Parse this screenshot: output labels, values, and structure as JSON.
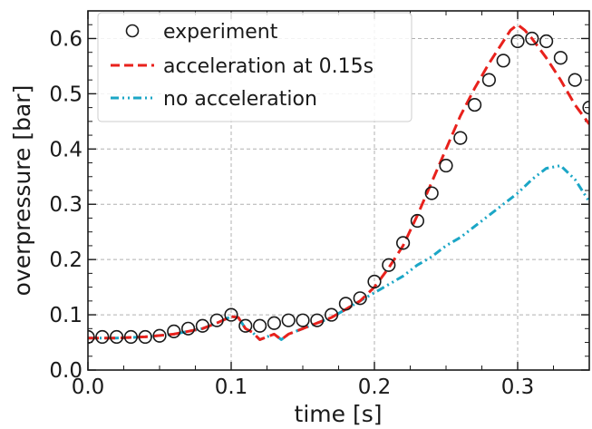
{
  "chart_data": {
    "type": "line",
    "title": "",
    "xlabel": "time [s]",
    "ylabel": "overpressure [bar]",
    "xlim": [
      0.0,
      0.35
    ],
    "ylim": [
      0.0,
      0.65
    ],
    "xticks": [
      0.0,
      0.1,
      0.2,
      0.3
    ],
    "xtick_labels": [
      "0.0",
      "0.1",
      "0.2",
      "0.3"
    ],
    "yticks": [
      0.0,
      0.1,
      0.2,
      0.3,
      0.4,
      0.5,
      0.6
    ],
    "ytick_labels": [
      "0.0",
      "0.1",
      "0.2",
      "0.3",
      "0.4",
      "0.5",
      "0.6"
    ],
    "grid": true,
    "legend_position": "top-left",
    "series": [
      {
        "name": "experiment",
        "style": "open-circle-markers",
        "color": "#1a1a1a",
        "x": [
          0.0,
          0.01,
          0.02,
          0.03,
          0.04,
          0.05,
          0.06,
          0.07,
          0.08,
          0.09,
          0.1,
          0.11,
          0.12,
          0.13,
          0.14,
          0.15,
          0.16,
          0.17,
          0.18,
          0.19,
          0.2,
          0.21,
          0.22,
          0.23,
          0.24,
          0.25,
          0.26,
          0.27,
          0.28,
          0.29,
          0.3,
          0.31,
          0.32,
          0.33,
          0.34,
          0.35
        ],
        "y": [
          0.06,
          0.06,
          0.06,
          0.06,
          0.06,
          0.062,
          0.07,
          0.075,
          0.08,
          0.09,
          0.1,
          0.08,
          0.08,
          0.085,
          0.09,
          0.09,
          0.09,
          0.1,
          0.12,
          0.13,
          0.16,
          0.19,
          0.23,
          0.27,
          0.32,
          0.37,
          0.42,
          0.48,
          0.525,
          0.56,
          0.595,
          0.6,
          0.595,
          0.565,
          0.525,
          0.475
        ]
      },
      {
        "name": "acceleration at 0.15s",
        "style": "dashed",
        "color": "#e8211c",
        "x": [
          0.0,
          0.02,
          0.04,
          0.06,
          0.08,
          0.09,
          0.1,
          0.105,
          0.11,
          0.115,
          0.12,
          0.125,
          0.13,
          0.135,
          0.14,
          0.15,
          0.16,
          0.17,
          0.18,
          0.19,
          0.2,
          0.21,
          0.22,
          0.23,
          0.24,
          0.25,
          0.26,
          0.27,
          0.28,
          0.29,
          0.295,
          0.3,
          0.305,
          0.31,
          0.32,
          0.33,
          0.34,
          0.35
        ],
        "y": [
          0.058,
          0.058,
          0.06,
          0.065,
          0.075,
          0.085,
          0.097,
          0.095,
          0.075,
          0.068,
          0.055,
          0.06,
          0.065,
          0.055,
          0.065,
          0.075,
          0.085,
          0.095,
          0.11,
          0.125,
          0.15,
          0.185,
          0.225,
          0.28,
          0.34,
          0.4,
          0.46,
          0.51,
          0.555,
          0.595,
          0.615,
          0.625,
          0.615,
          0.6,
          0.565,
          0.525,
          0.48,
          0.445
        ]
      },
      {
        "name": "no acceleration",
        "style": "dash-dot-dot",
        "color": "#1ba6c6",
        "x": [
          0.0,
          0.02,
          0.04,
          0.06,
          0.08,
          0.09,
          0.1,
          0.105,
          0.11,
          0.115,
          0.12,
          0.125,
          0.13,
          0.135,
          0.14,
          0.15,
          0.16,
          0.17,
          0.18,
          0.19,
          0.2,
          0.21,
          0.22,
          0.23,
          0.24,
          0.25,
          0.26,
          0.27,
          0.28,
          0.29,
          0.3,
          0.31,
          0.32,
          0.33,
          0.34,
          0.35
        ],
        "y": [
          0.058,
          0.058,
          0.06,
          0.065,
          0.075,
          0.085,
          0.097,
          0.095,
          0.075,
          0.068,
          0.055,
          0.06,
          0.065,
          0.055,
          0.065,
          0.075,
          0.085,
          0.095,
          0.11,
          0.125,
          0.14,
          0.155,
          0.17,
          0.19,
          0.205,
          0.225,
          0.24,
          0.26,
          0.28,
          0.3,
          0.32,
          0.345,
          0.365,
          0.37,
          0.345,
          0.305
        ]
      }
    ]
  }
}
